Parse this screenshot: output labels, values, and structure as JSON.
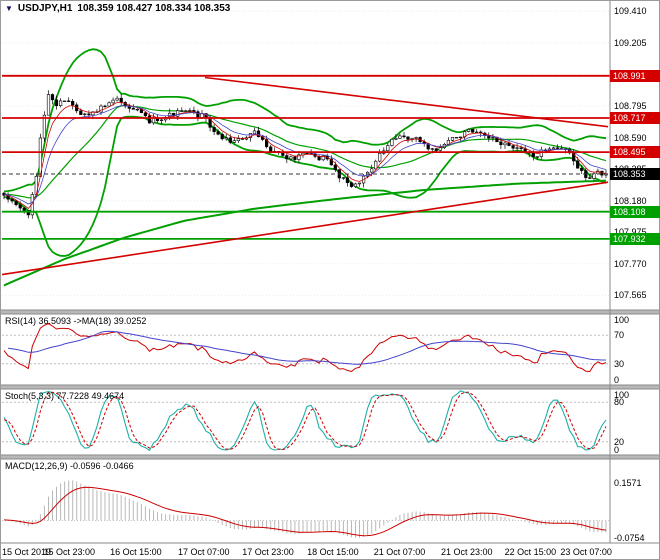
{
  "header": {
    "icon": "▼",
    "symbol": "USDJPY,H1",
    "ohlc": "108.359 108.427 108.334 108.353"
  },
  "chart_data": {
    "type": "candlestick",
    "symbol": "USDJPY",
    "timeframe": "H1",
    "open": "108.359",
    "high": "108.427",
    "low": "108.334",
    "close": "108.353",
    "y_axis": {
      "min": 107.47,
      "max": 109.47,
      "ticks": [
        109.41,
        109.205,
        109.0,
        108.795,
        108.59,
        108.385,
        108.18,
        107.975,
        107.77,
        107.565
      ]
    },
    "x_labels": [
      {
        "t": 0.008,
        "label": "15 Oct 2019"
      },
      {
        "t": 0.111,
        "label": "15 Oct 23:00"
      },
      {
        "t": 0.221,
        "label": "16 Oct 15:00"
      },
      {
        "t": 0.333,
        "label": "17 Oct 07:00"
      },
      {
        "t": 0.439,
        "label": "17 Oct 23:00"
      },
      {
        "t": 0.546,
        "label": "18 Oct 15:00"
      },
      {
        "t": 0.656,
        "label": "21 Oct 07:00"
      },
      {
        "t": 0.767,
        "label": "21 Oct 23:00"
      },
      {
        "t": 0.872,
        "label": "22 Oct 15:00"
      },
      {
        "t": 0.964,
        "label": "23 Oct 07:00"
      }
    ],
    "candles": {
      "count": 150,
      "seed": 7,
      "noise": 0.018,
      "price_path": [
        [
          0.0,
          108.22
        ],
        [
          0.02,
          108.16
        ],
        [
          0.04,
          108.08
        ],
        [
          0.052,
          108.3
        ],
        [
          0.062,
          108.62
        ],
        [
          0.072,
          108.86
        ],
        [
          0.085,
          108.8
        ],
        [
          0.105,
          108.85
        ],
        [
          0.13,
          108.73
        ],
        [
          0.16,
          108.78
        ],
        [
          0.19,
          108.84
        ],
        [
          0.21,
          108.79
        ],
        [
          0.24,
          108.7
        ],
        [
          0.27,
          108.73
        ],
        [
          0.3,
          108.76
        ],
        [
          0.33,
          108.73
        ],
        [
          0.355,
          108.6
        ],
        [
          0.385,
          108.56
        ],
        [
          0.415,
          108.62
        ],
        [
          0.445,
          108.51
        ],
        [
          0.475,
          108.45
        ],
        [
          0.505,
          108.48
        ],
        [
          0.535,
          108.45
        ],
        [
          0.56,
          108.33
        ],
        [
          0.585,
          108.27
        ],
        [
          0.61,
          108.4
        ],
        [
          0.64,
          108.55
        ],
        [
          0.66,
          108.6
        ],
        [
          0.69,
          108.57
        ],
        [
          0.715,
          108.5
        ],
        [
          0.74,
          108.57
        ],
        [
          0.77,
          108.63
        ],
        [
          0.8,
          108.59
        ],
        [
          0.83,
          108.55
        ],
        [
          0.86,
          108.5
        ],
        [
          0.885,
          108.47
        ],
        [
          0.91,
          108.54
        ],
        [
          0.935,
          108.51
        ],
        [
          0.952,
          108.4
        ],
        [
          0.968,
          108.33
        ],
        [
          0.985,
          108.36
        ],
        [
          1.0,
          108.353
        ]
      ]
    },
    "levels": [
      {
        "price": 108.991,
        "color": "#d40000",
        "kind": "resistance"
      },
      {
        "price": 108.717,
        "color": "#d40000",
        "kind": "resistance"
      },
      {
        "price": 108.495,
        "color": "#d40000",
        "kind": "resistance"
      },
      {
        "price": 108.108,
        "color": "#00a000",
        "kind": "support"
      },
      {
        "price": 107.932,
        "color": "#00a000",
        "kind": "support"
      }
    ],
    "current_price": {
      "value": 108.353,
      "label": "108.353",
      "color": "#000000"
    },
    "trendlines": [
      {
        "x1": 0.335,
        "p1": 108.98,
        "x2": 1.0,
        "p2": 108.66,
        "color": "#d40000"
      },
      {
        "x1": 0.0,
        "p1": 107.7,
        "x2": 1.0,
        "p2": 108.3,
        "color": "#d40000"
      }
    ],
    "slow_ma_path": [
      [
        0.0,
        107.63
      ],
      [
        0.1,
        107.8
      ],
      [
        0.2,
        107.94
      ],
      [
        0.3,
        108.05
      ],
      [
        0.42,
        108.13
      ],
      [
        0.55,
        108.19
      ],
      [
        0.7,
        108.25
      ],
      [
        0.85,
        108.29
      ],
      [
        1.0,
        108.31
      ]
    ],
    "bollinger": {
      "period": 20,
      "deviation": 2,
      "color": "#00a000"
    },
    "indicators": {
      "rsi": {
        "label": "RSI(14) 36.5093 ->MA(18) 39.0252",
        "value": 36.5093,
        "ma_value": 39.0252,
        "levels": [
          30,
          70
        ],
        "ticks": [
          100,
          70,
          30,
          0
        ],
        "line_color": "#cc0000",
        "ma_color": "#4444cc"
      },
      "stoch": {
        "label": "Stoch(5,3,3) 77.7228 49.4674",
        "value": 77.7228,
        "signal_value": 49.4674,
        "levels": [
          20,
          80
        ],
        "ticks": [
          100,
          80,
          20,
          0
        ],
        "k_color": "#1fb0a8",
        "d_color": "#cc0000"
      },
      "macd": {
        "label": "MACD(12,26,9) -0.0596 -0.0466",
        "value": -0.0596,
        "signal_value": -0.0466,
        "range": [
          -0.095,
          0.26
        ],
        "ticks": [
          {
            "value": 0.1571,
            "label": "0.1571"
          },
          {
            "value": -0.0754,
            "label": "-0.0754"
          }
        ],
        "hist_color": "#b8b8b8",
        "signal_color": "#cc0000"
      }
    }
  }
}
